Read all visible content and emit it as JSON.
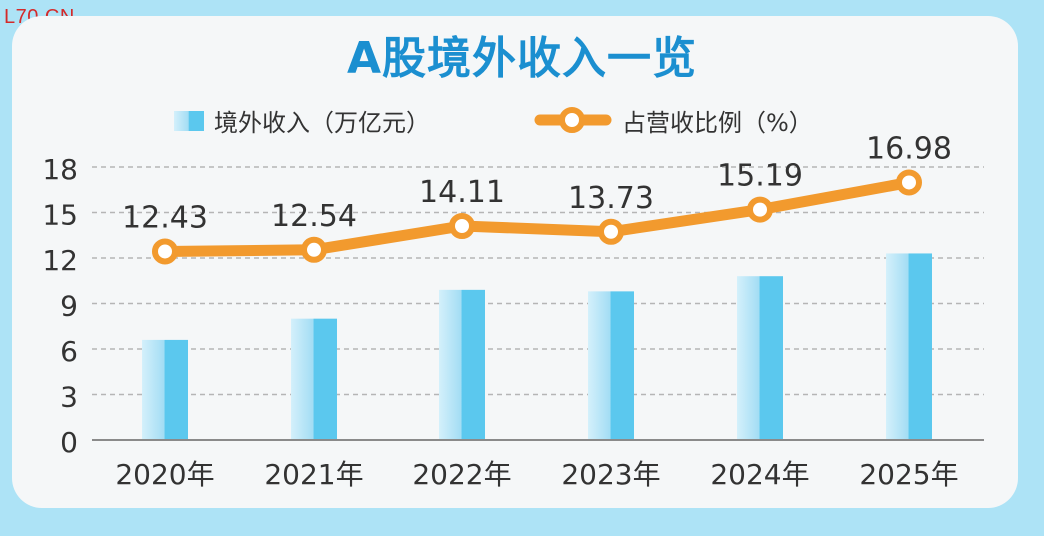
{
  "watermark": "L70.CN",
  "colors": {
    "background": "#ade3f6",
    "title": "#1b8fd0",
    "bar": "#5bc8ee",
    "bar_highlight": "#c9ecfa",
    "line": "#f29a2e",
    "text": "#333333"
  },
  "chart_data": {
    "type": "bar",
    "title": "A股境外收入一览",
    "categories": [
      "2020年",
      "2021年",
      "2022年",
      "2023年",
      "2024年",
      "2025年"
    ],
    "yticks": [
      "0",
      "3",
      "6",
      "9",
      "12",
      "15",
      "18"
    ],
    "ylim": [
      0,
      18
    ],
    "grid": true,
    "legend_position": "top",
    "series": [
      {
        "name": "境外收入（万亿元）",
        "type": "bar",
        "values": [
          6.6,
          8.0,
          9.9,
          9.8,
          10.8,
          12.3
        ]
      },
      {
        "name": "占营收比例（%）",
        "type": "line",
        "values": [
          12.43,
          12.54,
          14.11,
          13.73,
          15.19,
          16.98
        ],
        "labels": [
          "12.43",
          "12.54",
          "14.11",
          "13.73",
          "15.19",
          "16.98"
        ]
      }
    ]
  }
}
